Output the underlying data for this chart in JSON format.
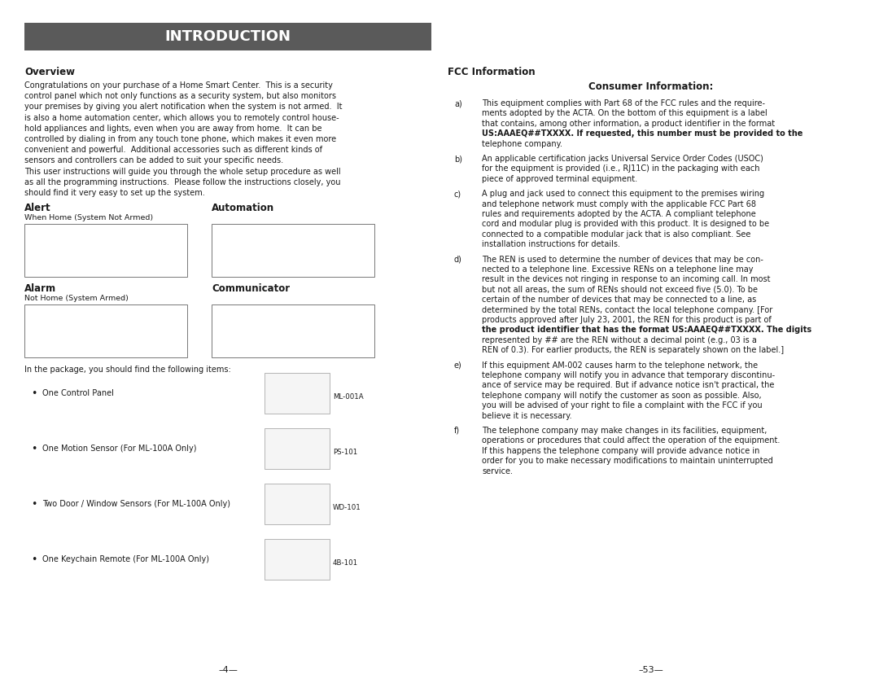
{
  "title": "INTRODUCTION",
  "title_bg": "#5a5a5a",
  "title_color": "#ffffff",
  "title_fontsize": 13,
  "bg_color": "#ffffff",
  "text_color": "#1a1a1a",
  "overview_heading": "Overview",
  "alert_heading": "Alert",
  "alert_sub": "When Home (System Not Armed)",
  "alarm_heading": "Alarm",
  "alarm_sub": "Not Home (System Armed)",
  "automation_heading": "Automation",
  "communicator_heading": "Communicator",
  "package_text": "In the package, you should find the following items:",
  "fcc_heading": "FCC Information",
  "consumer_heading": "Consumer Information:",
  "page_num_left": "–4—",
  "page_num_right": "–53—",
  "overview_lines": [
    "Congratulations on your purchase of a Home Smart Center.  This is a security",
    "control panel which not only functions as a security system, but also monitors",
    "your premises by giving you alert notification when the system is not armed.  It",
    "is also a home automation center, which allows you to remotely control house-",
    "hold appliances and lights, even when you are away from home.  It can be",
    "controlled by dialing in from any touch tone phone, which makes it even more",
    "convenient and powerful.  Additional accessories such as different kinds of",
    "sensors and controllers can be added to suit your specific needs.",
    "This user instructions will guide you through the whole setup procedure as well",
    "as all the programming instructions.  Please follow the instructions closely, you",
    "should find it very easy to set up the system."
  ],
  "fcc_blocks": [
    {
      "label": "a)",
      "lines": [
        "This equipment complies with Part 68 of the FCC rules and the require-",
        "ments adopted by the ACTA. On the bottom of this equipment is a label",
        "that contains, among other information, a product identifier in the format",
        "US:AAAEQ##TXXXX. If requested, this number must be provided to the",
        "telephone company."
      ],
      "bold_line_idx": 3
    },
    {
      "label": "b)",
      "lines": [
        "An applicable certification jacks Universal Service Order Codes (USOC)",
        "for the equipment is provided (i.e., RJ11C) in the packaging with each",
        "piece of approved terminal equipment."
      ],
      "bold_line_idx": -1
    },
    {
      "label": "c)",
      "lines": [
        "A plug and jack used to connect this equipment to the premises wiring",
        "and telephone network must comply with the applicable FCC Part 68",
        "rules and requirements adopted by the ACTA. A compliant telephone",
        "cord and modular plug is provided with this product. It is designed to be",
        "connected to a compatible modular jack that is also compliant. See",
        "installation instructions for details."
      ],
      "bold_line_idx": -1
    },
    {
      "label": "d)",
      "lines": [
        "The REN is used to determine the number of devices that may be con-",
        "nected to a telephone line. Excessive RENs on a telephone line may",
        "result in the devices not ringing in response to an incoming call. In most",
        "but not all areas, the sum of RENs should not exceed five (5.0). To be",
        "certain of the number of devices that may be connected to a line, as",
        "determined by the total RENs, contact the local telephone company. [For",
        "products approved after July 23, 2001, the REN for this product is part of",
        "the product identifier that has the format US:AAAEQ##TXXXX. The digits",
        "represented by ## are the REN without a decimal point (e.g., 03 is a",
        "REN of 0.3). For earlier products, the REN is separately shown on the label.]"
      ],
      "bold_line_idx": 7
    },
    {
      "label": "e)",
      "lines": [
        "If this equipment AM-002 causes harm to the telephone network, the",
        "telephone company will notify you in advance that temporary discontinu-",
        "ance of service may be required. But if advance notice isn't practical, the",
        "telephone company will notify the customer as soon as possible. Also,",
        "you will be advised of your right to file a complaint with the FCC if you",
        "believe it is necessary."
      ],
      "bold_line_idx": -1
    },
    {
      "label": "f)",
      "lines": [
        "The telephone company may make changes in its facilities, equipment,",
        "operations or procedures that could affect the operation of the equipment.",
        "If this happens the telephone company will provide advance notice in",
        "order for you to make necessary modifications to maintain uninterrupted",
        "service."
      ],
      "bold_line_idx": -1
    }
  ],
  "bullet_items": [
    {
      "text": "One Control Panel",
      "model": "ML-001A"
    },
    {
      "text": "One Motion Sensor (For ML-100A Only)",
      "model": "PS-101"
    },
    {
      "text": "Two Door / Window Sensors (For ML-100A Only)",
      "model": "WD-101"
    },
    {
      "text": "One Keychain Remote (For ML-100A Only)",
      "model": "4B-101"
    }
  ]
}
